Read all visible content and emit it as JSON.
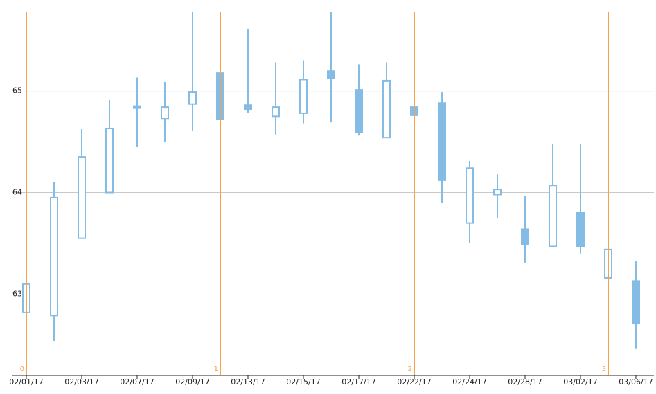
{
  "chart_data": {
    "type": "candlestick",
    "categories": [
      "02/01/17",
      null,
      "02/03/17",
      null,
      "02/07/17",
      null,
      "02/09/17",
      null,
      "02/13/17",
      null,
      "02/15/17",
      null,
      "02/17/17",
      null,
      "02/22/17",
      null,
      "02/24/17",
      null,
      "02/28/17",
      null,
      "03/02/17",
      null,
      "03/06/17"
    ],
    "open": [
      62.82,
      62.79,
      63.55,
      64.0,
      64.84,
      64.73,
      64.87,
      65.18,
      64.86,
      64.75,
      64.78,
      65.2,
      65.01,
      64.54,
      64.84,
      64.88,
      63.7,
      63.98,
      63.64,
      63.47,
      63.8,
      63.16,
      63.13
    ],
    "high": [
      63.2,
      64.1,
      64.63,
      64.91,
      65.13,
      65.09,
      65.78,
      65.18,
      65.61,
      65.28,
      65.3,
      65.78,
      65.26,
      65.28,
      64.84,
      64.99,
      64.31,
      64.18,
      63.97,
      64.48,
      64.48,
      63.44,
      63.33
    ],
    "low": [
      62.75,
      62.54,
      63.55,
      64.0,
      64.45,
      64.5,
      64.61,
      64.72,
      64.78,
      64.57,
      64.68,
      64.69,
      64.56,
      64.54,
      64.76,
      63.9,
      63.5,
      63.75,
      63.31,
      63.47,
      63.4,
      63.16,
      62.46
    ],
    "close": [
      63.1,
      63.95,
      64.35,
      64.63,
      64.85,
      64.84,
      64.99,
      64.72,
      64.82,
      64.84,
      65.11,
      65.12,
      64.59,
      65.1,
      64.76,
      64.12,
      64.24,
      64.03,
      63.49,
      64.07,
      63.47,
      63.44,
      62.71
    ],
    "color": "#85bce5",
    "ylim": [
      62.2,
      65.78
    ],
    "yticks": [
      63,
      64,
      65
    ],
    "grid": true,
    "vertical_lines": {
      "color": "#f7a14d",
      "lines": [
        {
          "index": 0,
          "label": "0"
        },
        {
          "index": 7,
          "label": "1"
        },
        {
          "index": 14,
          "label": "2"
        },
        {
          "index": 21,
          "label": "3"
        }
      ]
    }
  }
}
